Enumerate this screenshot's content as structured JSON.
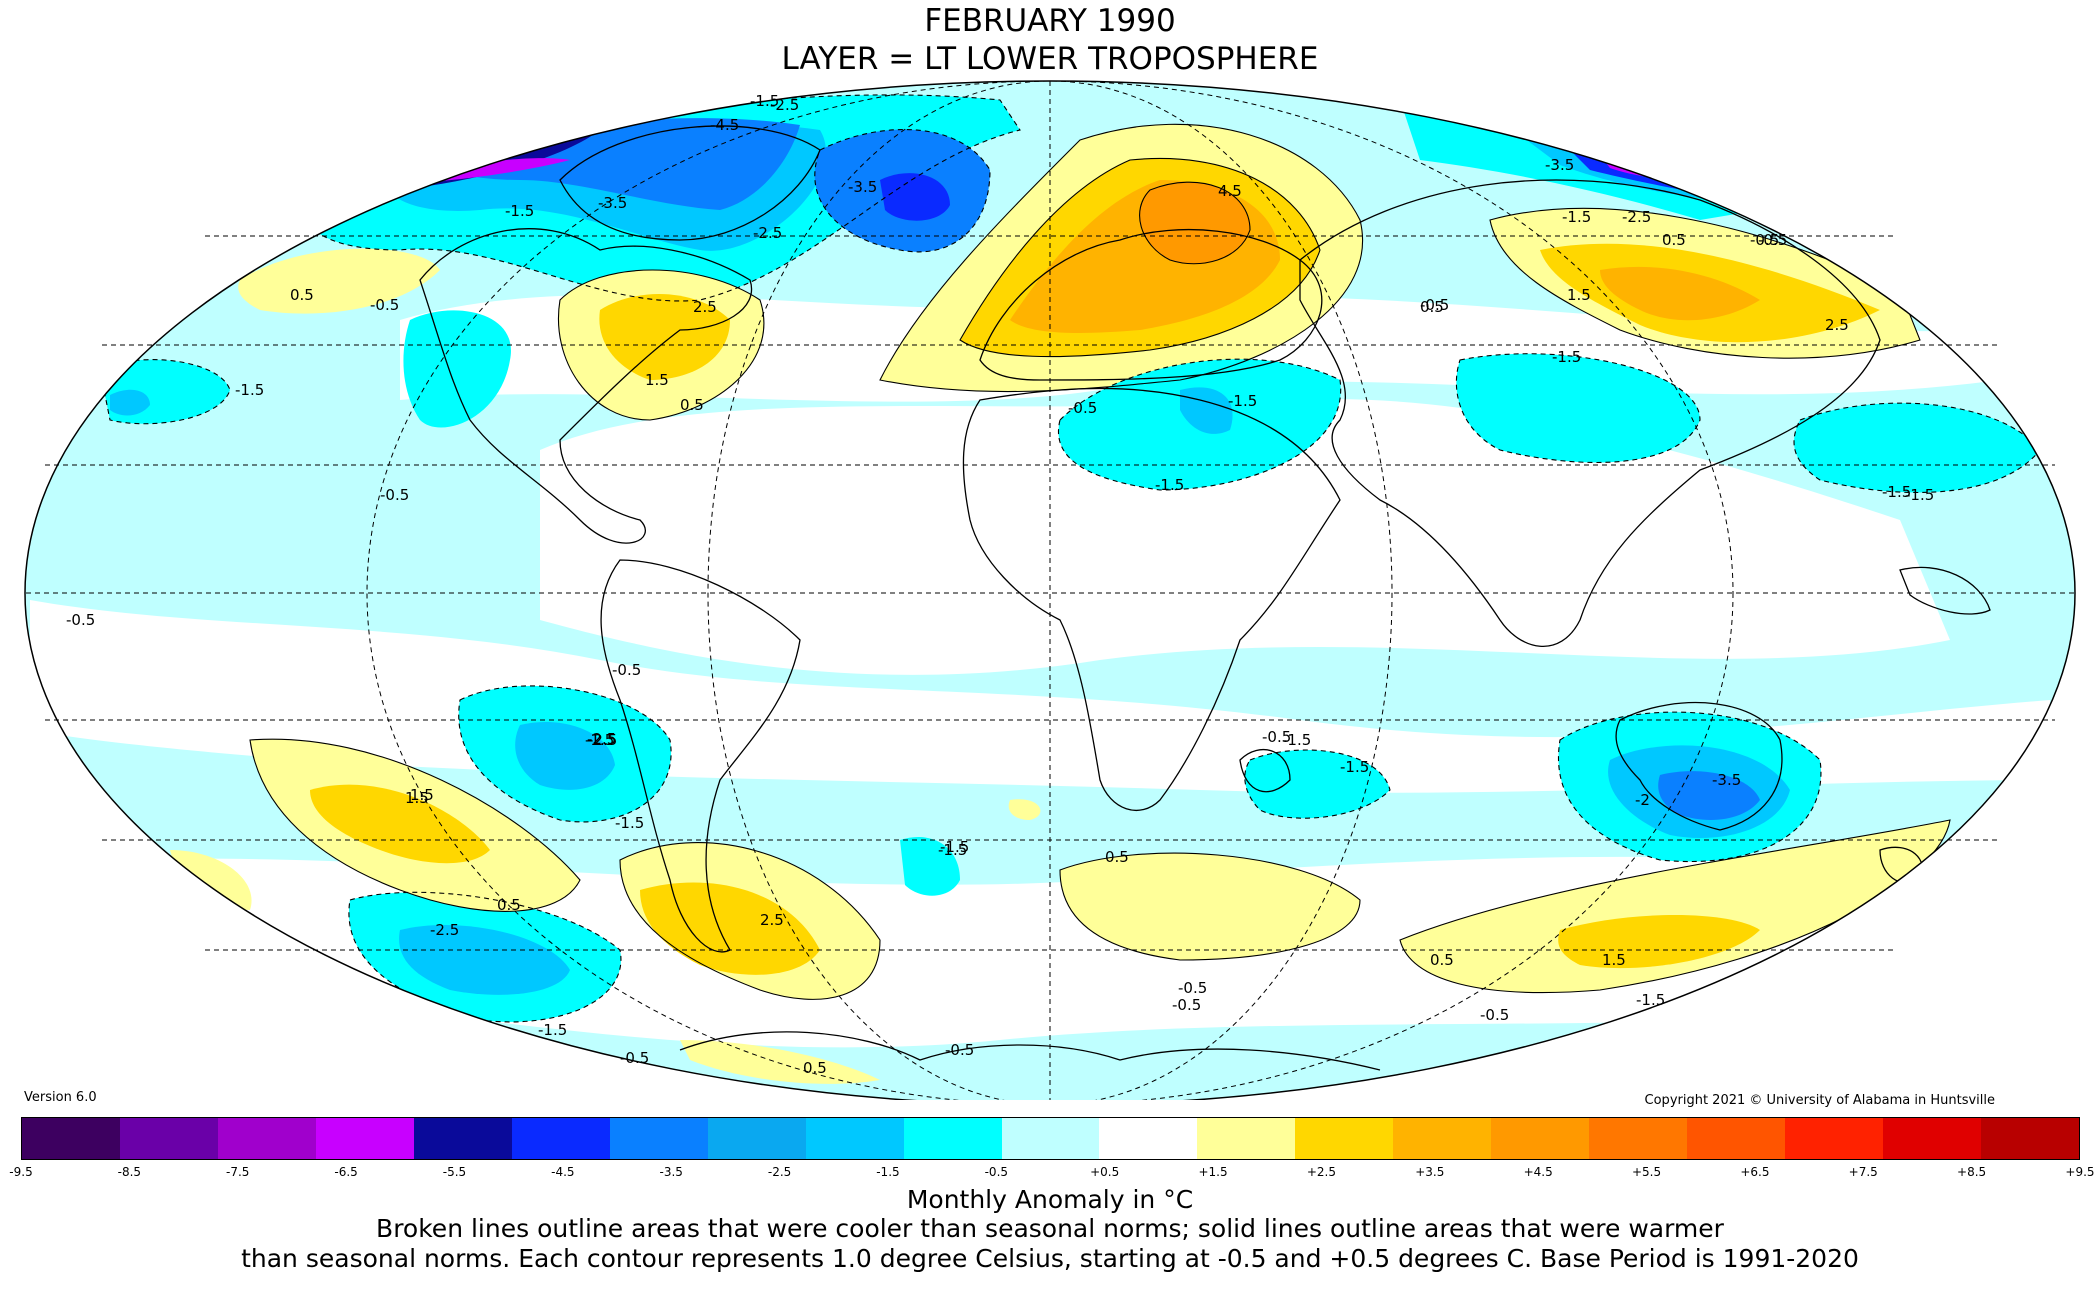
{
  "title_line1": "FEBRUARY 1990",
  "title_line2": "LAYER = LT LOWER TROPOSPHERE",
  "version": "Version 6.0",
  "copyright": "Copyright 2021 © University of Alabama in Huntsville",
  "colorbar": {
    "label": "Monthly Anomaly in °C",
    "ticks": [
      "-9.5",
      "-8.5",
      "-7.5",
      "-6.5",
      "-5.5",
      "-4.5",
      "-3.5",
      "-2.5",
      "-1.5",
      "-0.5",
      "+0.5",
      "+1.5",
      "+2.5",
      "+3.5",
      "+4.5",
      "+5.5",
      "+6.5",
      "+7.5",
      "+8.5",
      "+9.5"
    ],
    "colors": [
      "#3d0060",
      "#6a00a8",
      "#a000cc",
      "#c800ff",
      "#0a0a9a",
      "#0a2aff",
      "#0a80ff",
      "#0aa8f0",
      "#00c8ff",
      "#00ffff",
      "#bfffff",
      "#ffffff",
      "#ffff99",
      "#ffd700",
      "#ffb300",
      "#ff9900",
      "#ff7700",
      "#ff5500",
      "#ff2200",
      "#e00000",
      "#b80000"
    ]
  },
  "caption_line1": "Broken lines outline areas that were cooler than seasonal norms; solid lines outline areas that were warmer",
  "caption_line2": "than seasonal norms. Each contour represents 1.0 degree Celsius, starting at -0.5 and +0.5 degrees C. Base Period is 1991-2020",
  "contour_labels": [
    "-1.5",
    "-2.5",
    "-4.5",
    "-3.5",
    "-3.5",
    "-2.5",
    "-1.5",
    "-0.5",
    "0.5",
    "-0.5",
    "-1.5",
    "-2.5",
    "-3.5",
    "4.5",
    "2.5",
    "1.5",
    "-0.5",
    "-1.5",
    "0.5",
    "-1.5",
    "-1.5",
    "-0.5",
    "-1.5",
    "-0.5",
    "0.5",
    "2.5",
    "1.5",
    "0.5",
    "-1.5",
    "-1.5",
    "-0.5",
    "-1.5",
    "-2.5",
    "-0.5",
    "-0.5",
    "-1.5",
    "1.5",
    "-1.5",
    "-0.5",
    "-1.5",
    "-3.5",
    "-2.5",
    "-1.5",
    "0.5",
    "0.5",
    "-2.5",
    "2.5",
    "-2",
    "1.5",
    "-1.5",
    "-0.5",
    "-0.5",
    "-0.5",
    "0.5",
    "1.5",
    "-1.5",
    "-0.5",
    "0.5",
    "-0.5",
    "-1.5"
  ]
}
